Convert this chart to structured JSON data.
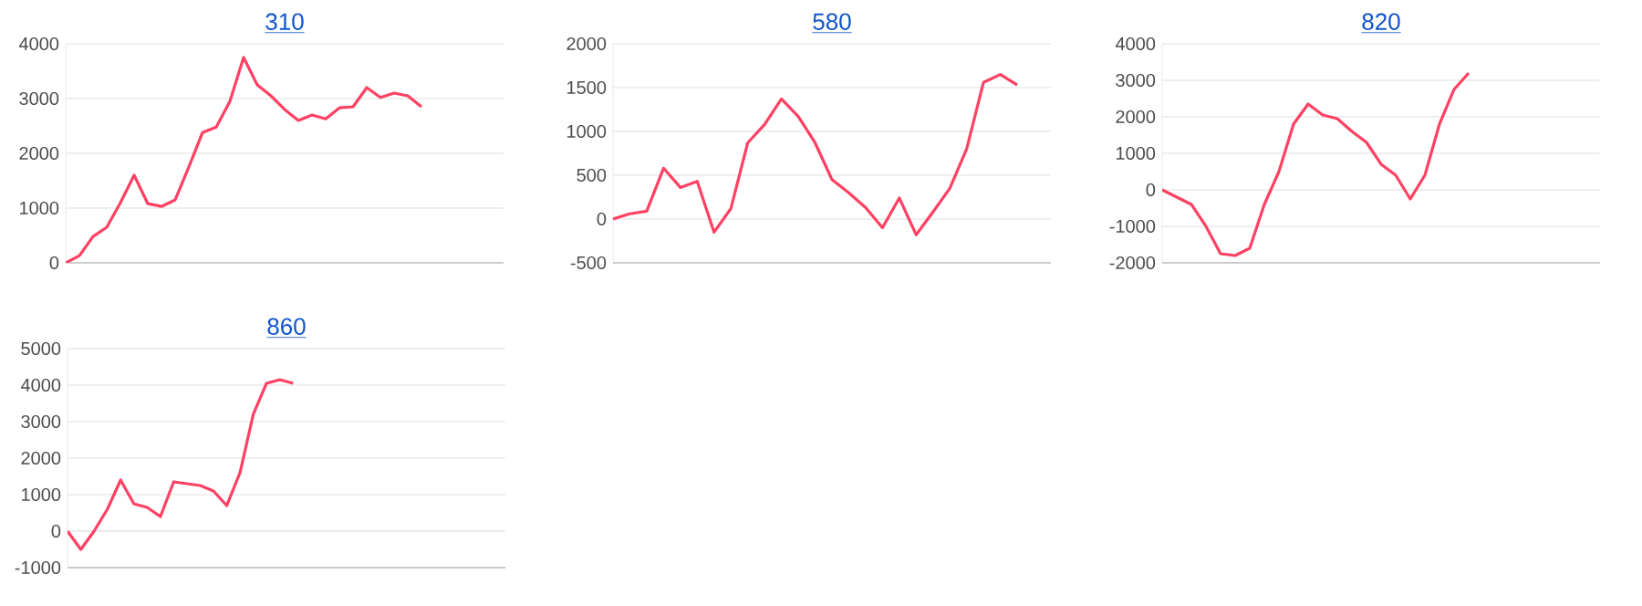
{
  "chart_data": [
    {
      "type": "line",
      "title": "310",
      "categories": [
        null,
        null,
        null,
        null,
        null,
        null,
        null,
        null,
        null,
        null,
        null,
        null,
        null,
        null,
        null,
        null,
        null,
        null,
        null,
        null,
        null,
        null,
        null,
        null,
        null,
        null,
        null,
        null,
        null,
        null,
        null,
        null,
        null
      ],
      "values": [
        0,
        130,
        480,
        650,
        1100,
        1600,
        1080,
        1030,
        1150,
        1750,
        2380,
        2480,
        2950,
        3750,
        3250,
        3050,
        2800,
        2600,
        2700,
        2630,
        2830,
        2850,
        3200,
        3020,
        3100,
        3050,
        2850,
        null,
        null,
        null,
        null,
        null,
        null
      ],
      "color": "#ff4163",
      "ylim": [
        0,
        4000
      ],
      "yticks": [
        0,
        1000,
        2000,
        3000,
        4000
      ],
      "grid": "y",
      "tick_labels": "y"
    },
    {
      "type": "line",
      "title": "580",
      "categories": [
        null,
        null,
        null,
        null,
        null,
        null,
        null,
        null,
        null,
        null,
        null,
        null,
        null,
        null,
        null,
        null,
        null,
        null,
        null,
        null,
        null,
        null,
        null,
        null,
        null,
        null,
        null
      ],
      "values": [
        0,
        60,
        90,
        580,
        360,
        430,
        -150,
        120,
        870,
        1080,
        1370,
        1170,
        870,
        450,
        300,
        130,
        -100,
        240,
        -180,
        80,
        350,
        800,
        1560,
        1650,
        1530,
        null,
        null
      ],
      "color": "#ff4163",
      "ylim": [
        -500,
        2000
      ],
      "yticks": [
        -500,
        0,
        500,
        1000,
        1500,
        2000
      ],
      "grid": "y",
      "tick_labels": "y"
    },
    {
      "type": "line",
      "title": "820",
      "categories": [
        null,
        null,
        null,
        null,
        null,
        null,
        null,
        null,
        null,
        null,
        null,
        null,
        null,
        null,
        null,
        null,
        null,
        null,
        null,
        null,
        null,
        null,
        null,
        null,
        null,
        null,
        null,
        null,
        null,
        null,
        null
      ],
      "values": [
        0,
        -200,
        -400,
        -1000,
        -1750,
        -1800,
        -1600,
        -400,
        500,
        1800,
        2350,
        2050,
        1950,
        1600,
        1300,
        700,
        400,
        -250,
        400,
        1800,
        2750,
        3200,
        null,
        null,
        null,
        null,
        null,
        null,
        null,
        null,
        null
      ],
      "color": "#ff4163",
      "ylim": [
        -2000,
        4000
      ],
      "yticks": [
        -2000,
        -1000,
        0,
        1000,
        2000,
        3000,
        4000
      ],
      "grid": "y",
      "tick_labels": "y"
    },
    {
      "type": "line",
      "title": "860",
      "categories": [
        null,
        null,
        null,
        null,
        null,
        null,
        null,
        null,
        null,
        null,
        null,
        null,
        null,
        null,
        null,
        null,
        null,
        null,
        null,
        null,
        null,
        null,
        null,
        null,
        null,
        null,
        null,
        null,
        null,
        null,
        null,
        null,
        null,
        null
      ],
      "values": [
        0,
        -500,
        0,
        600,
        1400,
        750,
        650,
        400,
        1350,
        1300,
        1250,
        1100,
        700,
        1600,
        3200,
        4050,
        4150,
        4050,
        null,
        null,
        null,
        null,
        null,
        null,
        null,
        null,
        null,
        null,
        null,
        null,
        null,
        null,
        null,
        null
      ],
      "color": "#ff4163",
      "ylim": [
        -1000,
        5000
      ],
      "yticks": [
        -1000,
        0,
        1000,
        2000,
        3000,
        4000,
        5000
      ],
      "grid": "y",
      "tick_labels": "y"
    }
  ]
}
